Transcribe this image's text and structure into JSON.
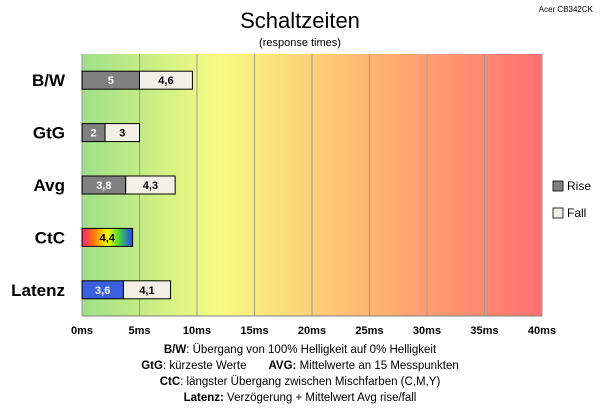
{
  "chart_data": {
    "type": "bar",
    "orientation": "horizontal",
    "stacked": true,
    "title": "Schaltzeiten",
    "subtitle": "(response times)",
    "corner_label": "Acer CB342CK",
    "categories": [
      "B/W",
      "GtG",
      "Avg",
      "CtC",
      "Latenz"
    ],
    "series": [
      {
        "name": "Rise",
        "values": [
          5,
          2,
          3.8,
          4.4,
          3.6
        ],
        "labels": [
          "5",
          "2",
          "3,8",
          "4,4",
          "3,6"
        ],
        "color": "#808080"
      },
      {
        "name": "Fall",
        "values": [
          4.6,
          3,
          4.3,
          null,
          4.1
        ],
        "labels": [
          "4,6",
          "3",
          "4,3",
          "",
          "4,1"
        ],
        "color": "#f2f0e6"
      }
    ],
    "special_colors": {
      "ctc": "rainbow",
      "latenz": "#3a5fe0"
    },
    "xlim": [
      0,
      40
    ],
    "xticks": [
      "0ms",
      "5ms",
      "10ms",
      "15ms",
      "20ms",
      "25ms",
      "30ms",
      "35ms",
      "40ms"
    ],
    "background_gradient": [
      "#9ee08a",
      "#f8fb80",
      "#ffb070",
      "#ff7070"
    ],
    "grid": true,
    "legend_position": "right"
  },
  "footnotes": {
    "bw_key": "B/W",
    "bw_text": ": Übergang von 100% Helligkeit auf 0% Helligkeit",
    "gtg_key": "GtG",
    "gtg_text": ": kürzeste Werte",
    "avg_key": "AVG:",
    "avg_text": " Mittelwerte an 15 Messpunkten",
    "ctc_key": "CtC",
    "ctc_text": ": längster Übergang zwischen Mischfarben (C,M,Y)",
    "lat_key": "Latenz:",
    "lat_text": " Verzögerung + Mittelwert Avg rise/fall"
  }
}
